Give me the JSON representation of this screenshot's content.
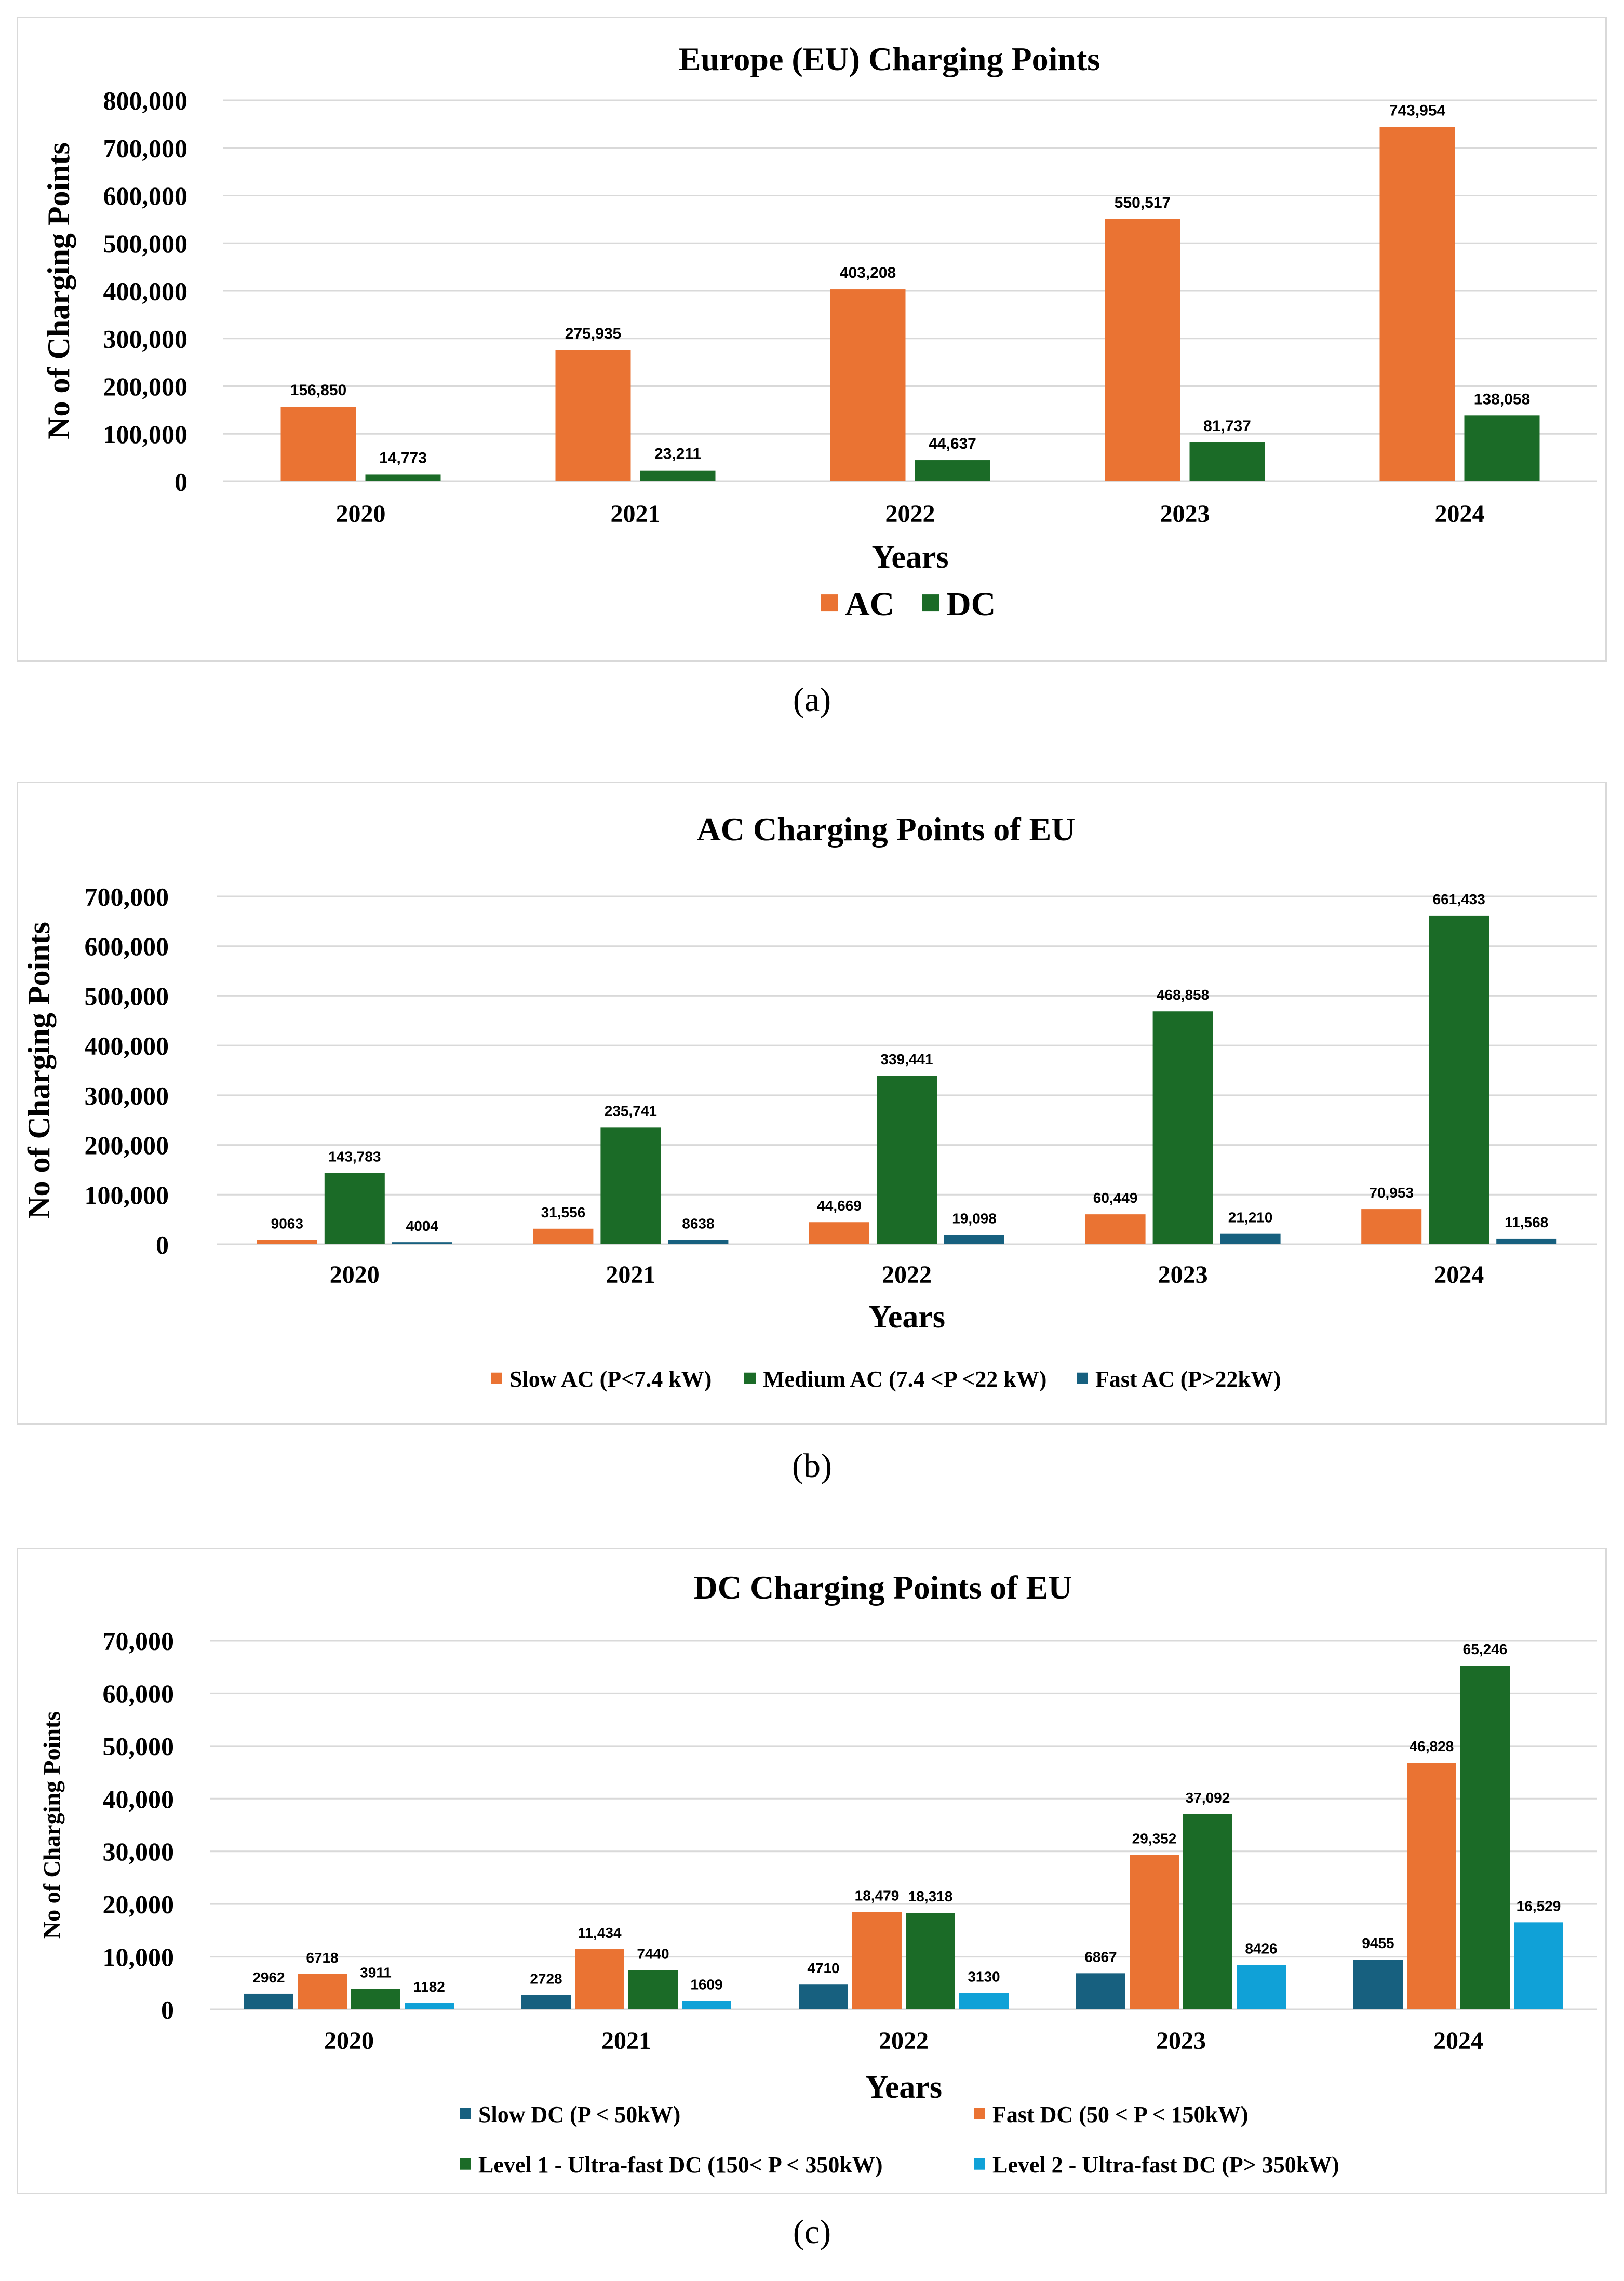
{
  "colors": {
    "ac": "#ea7333",
    "dc": "#1b6b27",
    "navy": "#17607f",
    "cyan": "#10a1d7",
    "grid": "#d9d9d9"
  },
  "captions": [
    "(a)",
    "(b)",
    "(c)"
  ],
  "chart_data": [
    {
      "type": "bar",
      "title": "Europe (EU) Charging Points",
      "xlabel": "Years",
      "ylabel": "No of Charging Points",
      "categories": [
        "2020",
        "2021",
        "2022",
        "2023",
        "2024"
      ],
      "ylim": [
        0,
        800000
      ],
      "ytick_step": 100000,
      "ytick_labels": [
        "0",
        "100,000",
        "200,000",
        "300,000",
        "400,000",
        "500,000",
        "600,000",
        "700,000",
        "800,000"
      ],
      "legend_position": "bottom",
      "series": [
        {
          "name": "AC",
          "color": "#ea7333",
          "values": [
            156850,
            275935,
            403208,
            550517,
            743954
          ],
          "labels": [
            "156,850",
            "275,935",
            "403,208",
            "550,517",
            "743,954"
          ]
        },
        {
          "name": "DC",
          "color": "#1b6b27",
          "values": [
            14773,
            23211,
            44637,
            81737,
            138058
          ],
          "labels": [
            "14,773",
            "23,211",
            "44,637",
            "81,737",
            "138,058"
          ]
        }
      ]
    },
    {
      "type": "bar",
      "title": "AC Charging Points of EU",
      "xlabel": "Years",
      "ylabel": "No of Charging Points",
      "categories": [
        "2020",
        "2021",
        "2022",
        "2023",
        "2024"
      ],
      "ylim": [
        0,
        700000
      ],
      "ytick_step": 100000,
      "ytick_labels": [
        "0",
        "100,000",
        "200,000",
        "300,000",
        "400,000",
        "500,000",
        "600,000",
        "700,000"
      ],
      "legend_position": "bottom",
      "series": [
        {
          "name": "Slow AC (P<7.4 kW)",
          "color": "#ea7333",
          "values": [
            9063,
            31556,
            44669,
            60449,
            70953
          ],
          "labels": [
            "9063",
            "31,556",
            "44,669",
            "60,449",
            "70,953"
          ]
        },
        {
          "name": "Medium AC (7.4 <P <22 kW)",
          "color": "#1b6b27",
          "values": [
            143783,
            235741,
            339441,
            468858,
            661433
          ],
          "labels": [
            "143,783",
            "235,741",
            "339,441",
            "468,858",
            "661,433"
          ]
        },
        {
          "name": "Fast AC  (P>22kW)",
          "color": "#17607f",
          "values": [
            4004,
            8638,
            19098,
            21210,
            11568
          ],
          "labels": [
            "4004",
            "8638",
            "19,098",
            "21,210",
            "11,568"
          ]
        }
      ]
    },
    {
      "type": "bar",
      "title": "DC Charging Points of EU",
      "xlabel": "Years",
      "ylabel": "No of Charging Points",
      "categories": [
        "2020",
        "2021",
        "2022",
        "2023",
        "2024"
      ],
      "ylim": [
        0,
        70000
      ],
      "ytick_step": 10000,
      "ytick_labels": [
        "0",
        "10,000",
        "20,000",
        "30,000",
        "40,000",
        "50,000",
        "60,000",
        "70,000"
      ],
      "legend_position": "bottom",
      "series": [
        {
          "name": "Slow DC (P < 50kW)",
          "color": "#17607f",
          "values": [
            2962,
            2728,
            4710,
            6867,
            9455
          ],
          "labels": [
            "2962",
            "2728",
            "4710",
            "6867",
            "9455"
          ]
        },
        {
          "name": "Fast DC  (50 < P < 150kW)",
          "color": "#ea7333",
          "values": [
            6718,
            11434,
            18479,
            29352,
            46828
          ],
          "labels": [
            "6718",
            "11,434",
            "18,479",
            "29,352",
            "46,828"
          ]
        },
        {
          "name": "Level 1 - Ultra-fast DC (150< P < 350kW)",
          "color": "#1b6b27",
          "values": [
            3911,
            7440,
            18318,
            37092,
            65246
          ],
          "labels": [
            "3911",
            "7440",
            "18,318",
            "37,092",
            "65,246"
          ]
        },
        {
          "name": "Level 2 - Ultra-fast DC (P> 350kW)",
          "color": "#10a1d7",
          "values": [
            1182,
            1609,
            3130,
            8426,
            16529
          ],
          "labels": [
            "1182",
            "1609",
            "3130",
            "8426",
            "16,529"
          ]
        }
      ]
    }
  ]
}
